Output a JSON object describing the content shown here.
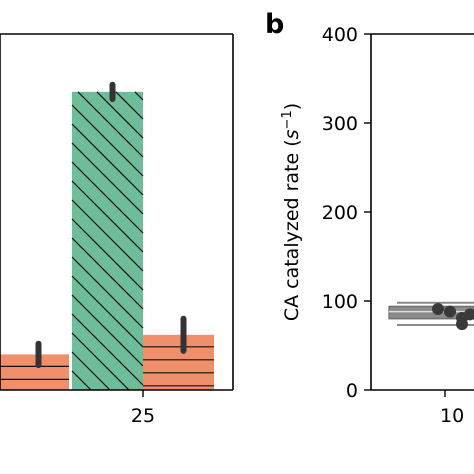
{
  "chart_data": [
    {
      "panel": "a",
      "type": "bar",
      "categories": [
        "",
        "25"
      ],
      "series": [
        {
          "color": "#6dbc9a",
          "hatch": "diagonal",
          "values": [
            null,
            335
          ],
          "errors": [
            null,
            8
          ]
        },
        {
          "color": "#ef8f6b",
          "hatch": "horizontal",
          "values": [
            40,
            62
          ],
          "errors": [
            12,
            18
          ]
        }
      ],
      "ylim": [
        0,
        400
      ]
    },
    {
      "panel": "b",
      "panel_label": "b",
      "type": "box",
      "ylabel_main": "CA catalyzed rate (",
      "ylabel_unit": "s",
      "ylabel_exp": "−1",
      "ylabel_close": ")",
      "ylim": [
        0,
        400
      ],
      "yticks": [
        "0",
        "100",
        "200",
        "300",
        "400"
      ],
      "x_tick_label": "10",
      "box": {
        "q1": 80,
        "median": 88,
        "q3": 94,
        "whisker_low": 73,
        "whisker_high": 98,
        "color": "#8a8a8a"
      },
      "points": [
        91,
        88,
        81,
        74,
        85
      ],
      "point_color": "#3a3a3a"
    }
  ]
}
